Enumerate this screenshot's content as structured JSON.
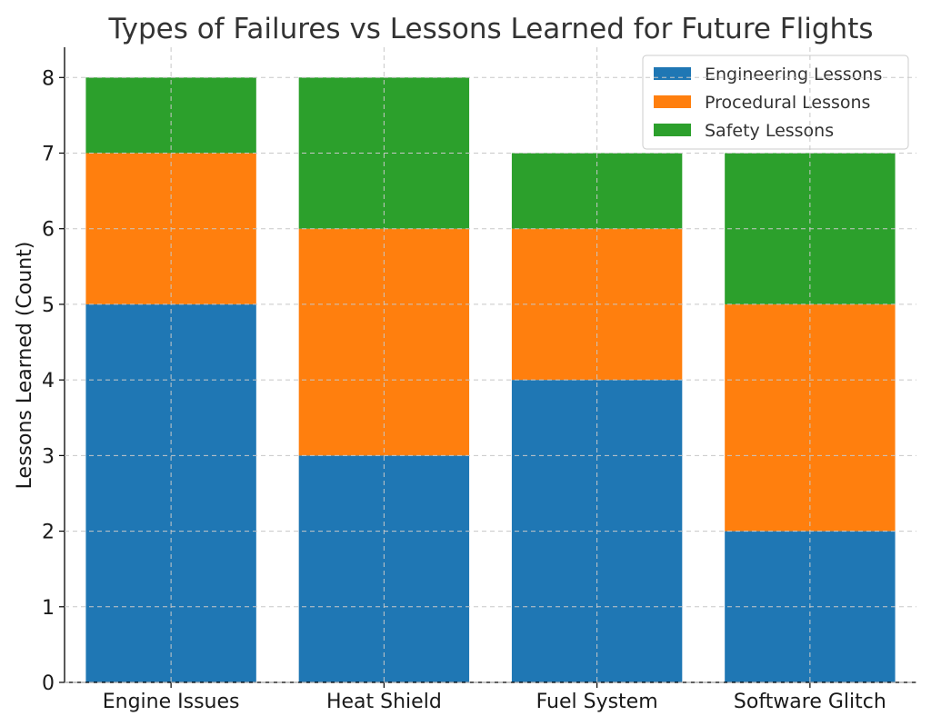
{
  "chart_data": {
    "type": "bar",
    "stacked": true,
    "title": "Types of Failures vs Lessons Learned for Future Flights",
    "xlabel": "",
    "ylabel": "Lessons Learned (Count)",
    "categories": [
      "Engine Issues",
      "Heat Shield",
      "Fuel System",
      "Software Glitch"
    ],
    "series": [
      {
        "name": "Engineering Lessons",
        "values": [
          5,
          3,
          4,
          2
        ],
        "color": "#1f77b4"
      },
      {
        "name": "Procedural Lessons",
        "values": [
          2,
          3,
          2,
          3
        ],
        "color": "#ff7f0e"
      },
      {
        "name": "Safety Lessons",
        "values": [
          1,
          2,
          1,
          2
        ],
        "color": "#2ca02c"
      }
    ],
    "ylim": [
      0,
      8.4
    ],
    "yticks": [
      0,
      1,
      2,
      3,
      4,
      5,
      6,
      7,
      8
    ],
    "grid": true,
    "legend_position": "top-right"
  }
}
